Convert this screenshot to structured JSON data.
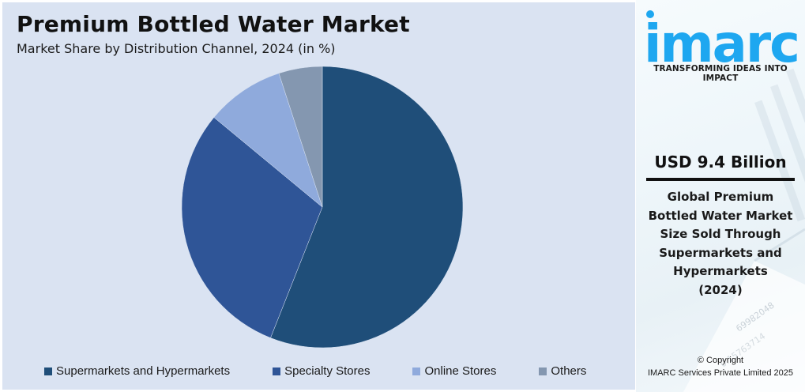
{
  "header": {
    "title": "Premium Bottled Water Market",
    "subtitle": "Market Share by Distribution Channel, 2024 (in %)"
  },
  "legend": [
    {
      "label": "Supermarkets and Hypermarkets",
      "color": "#1f4e79"
    },
    {
      "label": "Specialty Stores",
      "color": "#2f5597"
    },
    {
      "label": "Online Stores",
      "color": "#8faadc"
    },
    {
      "label": "Others",
      "color": "#8497b0"
    }
  ],
  "sidebar": {
    "logo_text": "imarc",
    "logo_color": "#1ea7f0",
    "tagline": "TRANSFORMING IDEAS INTO IMPACT",
    "value": "USD 9.4 Billion",
    "description_lines": [
      "Global Premium",
      "Bottled Water Market",
      "Size Sold Through",
      "Supermarkets and",
      "Hypermarkets",
      "(2024)"
    ],
    "copyright_line1": "© Copyright",
    "copyright_line2": "IMARC Services Private Limited 2025"
  },
  "chart_data": {
    "type": "pie",
    "title": "Premium Bottled Water Market",
    "subtitle": "Market Share by Distribution Channel, 2024 (in %)",
    "categories": [
      "Supermarkets and Hypermarkets",
      "Specialty Stores",
      "Online Stores",
      "Others"
    ],
    "values": [
      56,
      30,
      9,
      5
    ],
    "colors": [
      "#1f4e79",
      "#2f5597",
      "#8faadc",
      "#8497b0"
    ],
    "start_angle_deg": 0,
    "direction": "clockwise",
    "legend_position": "bottom",
    "data_labels": false
  }
}
